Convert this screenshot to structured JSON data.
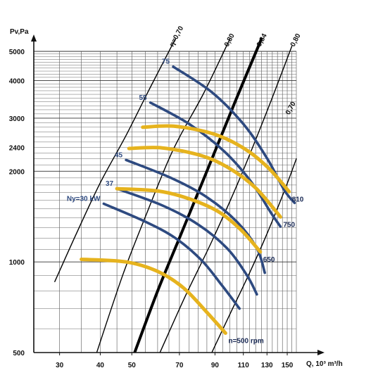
{
  "chart_data": {
    "type": "line",
    "xlabel": "Q, 10³ m³/h",
    "ylabel": "Pv,Pa",
    "x_scale": "log",
    "y_scale": "log",
    "xlim": [
      25,
      160
    ],
    "ylim": [
      500,
      5000
    ],
    "x_ticks": [
      30,
      40,
      50,
      70,
      90,
      110,
      130,
      150
    ],
    "x_tick_labels": [
      "30",
      "40",
      "50",
      "70",
      "90",
      "110",
      "130",
      "150"
    ],
    "y_ticks": [
      500,
      1000,
      2000,
      2400,
      3000,
      4000,
      5000
    ],
    "y_tick_labels": [
      "500",
      "1000",
      "2000",
      "2400",
      "3000",
      "4000",
      "5000"
    ],
    "grid": true,
    "speed_curves": [
      {
        "name": "n=500 rpm",
        "label": "n=500 rpm",
        "color": "#e6b31e",
        "points": [
          [
            35,
            1020
          ],
          [
            48,
            1000
          ],
          [
            60,
            930
          ],
          [
            72,
            820
          ],
          [
            85,
            680
          ],
          [
            97,
            580
          ]
        ]
      },
      {
        "name": "650",
        "label": "650",
        "color": "#e6b31e",
        "points": [
          [
            45,
            1750
          ],
          [
            60,
            1720
          ],
          [
            75,
            1620
          ],
          [
            92,
            1470
          ],
          [
            108,
            1280
          ],
          [
            124,
            1080
          ]
        ]
      },
      {
        "name": "750",
        "label": "750",
        "color": "#e6b31e",
        "points": [
          [
            49,
            2380
          ],
          [
            62,
            2390
          ],
          [
            82,
            2250
          ],
          [
            100,
            2040
          ],
          [
            120,
            1760
          ],
          [
            143,
            1410
          ]
        ]
      },
      {
        "name": "810",
        "label": "810",
        "color": "#e6b31e",
        "points": [
          [
            54,
            2800
          ],
          [
            68,
            2820
          ],
          [
            90,
            2650
          ],
          [
            112,
            2360
          ],
          [
            132,
            2040
          ],
          [
            152,
            1710
          ]
        ]
      }
    ],
    "power_curves": [
      {
        "name": "Ny=30 kW",
        "label": "Ny=30 kW",
        "color": "#2e4a80",
        "points": [
          [
            41,
            1560
          ],
          [
            55,
            1360
          ],
          [
            68,
            1200
          ],
          [
            82,
            1010
          ],
          [
            95,
            830
          ],
          [
            107,
            700
          ]
        ]
      },
      {
        "name": "37",
        "label": "37",
        "color": "#2e4a80",
        "points": [
          [
            45,
            1750
          ],
          [
            62,
            1540
          ],
          [
            80,
            1330
          ],
          [
            98,
            1110
          ],
          [
            113,
            900
          ],
          [
            121,
            780
          ]
        ]
      },
      {
        "name": "45",
        "label": "45",
        "color": "#2e4a80",
        "points": [
          [
            48,
            2180
          ],
          [
            66,
            1900
          ],
          [
            85,
            1640
          ],
          [
            105,
            1360
          ],
          [
            121,
            1110
          ],
          [
            128,
            920
          ]
        ]
      },
      {
        "name": "55",
        "label": "55",
        "color": "#2e4a80",
        "points": [
          [
            57,
            3380
          ],
          [
            75,
            2870
          ],
          [
            96,
            2330
          ],
          [
            116,
            1850
          ],
          [
            134,
            1450
          ],
          [
            143,
            1310
          ]
        ]
      },
      {
        "name": "75",
        "label": "75",
        "color": "#2e4a80",
        "points": [
          [
            67,
            4450
          ],
          [
            88,
            3660
          ],
          [
            110,
            2870
          ],
          [
            130,
            2210
          ],
          [
            147,
            1730
          ],
          [
            158,
            1570
          ]
        ]
      }
    ],
    "efficiency_lines": [
      {
        "name": "η=0,70",
        "label": "η=0,70",
        "points": [
          [
            29,
            860
          ],
          [
            34,
            1260
          ],
          [
            40,
            1830
          ],
          [
            48,
            2630
          ],
          [
            57,
            3800
          ],
          [
            68,
            5500
          ]
        ],
        "bold": false
      },
      {
        "name": "0,80",
        "label": "0,80",
        "points": [
          [
            39,
            500
          ],
          [
            47,
            910
          ],
          [
            55,
            1410
          ],
          [
            67,
            2360
          ],
          [
            83,
            3620
          ],
          [
            100,
            5500
          ]
        ],
        "bold": false
      },
      {
        "name": "0,84",
        "label": "0,84",
        "points": [
          [
            51,
            500
          ],
          [
            60,
            800
          ],
          [
            70,
            1200
          ],
          [
            85,
            2000
          ],
          [
            104,
            3420
          ],
          [
            125,
            5500
          ]
        ],
        "bold": true
      },
      {
        "name": "0,80",
        "label": "0,80",
        "points": [
          [
            61,
            500
          ],
          [
            73,
            770
          ],
          [
            88,
            1170
          ],
          [
            107,
            1880
          ],
          [
            131,
            3230
          ],
          [
            155,
            5200
          ]
        ],
        "bold": false
      },
      {
        "name": "0,70",
        "label": "0,70",
        "points": [
          [
            88,
            500
          ],
          [
            100,
            670
          ],
          [
            115,
            920
          ],
          [
            130,
            1240
          ],
          [
            147,
            1720
          ],
          [
            160,
            2200
          ]
        ],
        "bold": false
      }
    ]
  }
}
